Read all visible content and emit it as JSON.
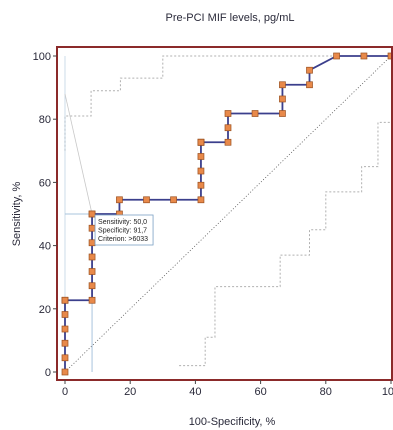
{
  "chart_data": {
    "type": "line",
    "title": "Pre-PCI MIF levels, pg/mL",
    "xlabel": "100-Specificity, %",
    "ylabel": "Sensitivity, %",
    "xlim": [
      0,
      100
    ],
    "ylim": [
      0,
      100
    ],
    "xticks": [
      "0",
      "20",
      "40",
      "60",
      "80",
      "100"
    ],
    "yticks": [
      "0",
      "20",
      "40",
      "60",
      "80",
      "100"
    ],
    "grid": false,
    "colors": {
      "curve": "#3b3f8c",
      "marker_fill": "#e8894a",
      "marker_edge": "#9a5020",
      "frame": "#8b2a2a",
      "confidence_band": "#b0b0b0",
      "diagonal": "#555555",
      "criterion_guide": "#a9c4dc"
    },
    "roc_curve": {
      "x": [
        0,
        0,
        0,
        0,
        0,
        0,
        0,
        8.3,
        8.3,
        8.3,
        8.3,
        8.3,
        8.3,
        8.3,
        8.3,
        16.7,
        16.7,
        25,
        33.3,
        41.7,
        41.7,
        41.7,
        41.7,
        41.7,
        41.7,
        41.7,
        41.7,
        50,
        50,
        50,
        58.3,
        66.7,
        66.7,
        66.7,
        75,
        75,
        83.3,
        91.7,
        100
      ],
      "y": [
        0,
        4.5,
        9.1,
        13.6,
        18.2,
        22.7,
        22.7,
        22.7,
        27.3,
        31.8,
        36.4,
        40.9,
        45.5,
        50,
        50,
        50,
        54.5,
        54.5,
        54.5,
        54.5,
        59.1,
        63.6,
        68.2,
        72.7,
        72.7,
        72.7,
        72.7,
        72.7,
        77.3,
        81.8,
        81.8,
        81.8,
        86.4,
        90.9,
        90.9,
        95.5,
        100,
        100,
        100
      ]
    },
    "criterion_point": {
      "x": 8.3,
      "y": 50
    },
    "annotation": {
      "sensitivity": "Sensitivity: 50,0",
      "specificity": "Specificity: 91,7",
      "criterion": "Criterion: >6033"
    }
  }
}
